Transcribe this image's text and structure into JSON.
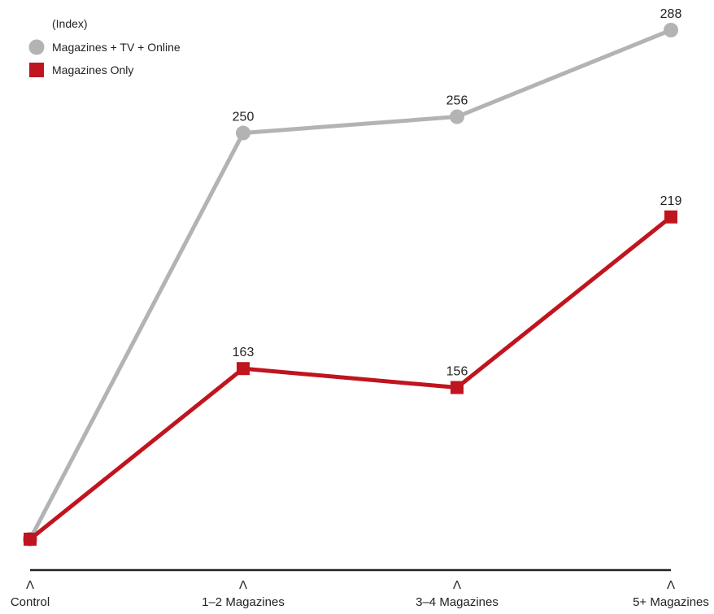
{
  "chart_data": {
    "type": "line",
    "ylabel": "(Index)",
    "categories": [
      "Control",
      "1–2 Magazines",
      "3–4 Magazines",
      "5+ Magazines"
    ],
    "series": [
      {
        "name": "Magazines + TV + Online",
        "values": [
          100,
          250,
          256,
          288
        ],
        "data_labels": [
          "",
          "250",
          "256",
          "288"
        ],
        "color": "#b3b3b3",
        "marker": "circle"
      },
      {
        "name": "Magazines Only",
        "values": [
          100,
          163,
          156,
          219
        ],
        "data_labels": [
          "",
          "163",
          "156",
          "219"
        ],
        "color": "#c0141e",
        "marker": "square"
      }
    ],
    "tick_mark_symbol": "Λ",
    "ylim": [
      100,
      288
    ],
    "grid": false,
    "legend_position": "top-left",
    "axis_color": "#222222"
  }
}
